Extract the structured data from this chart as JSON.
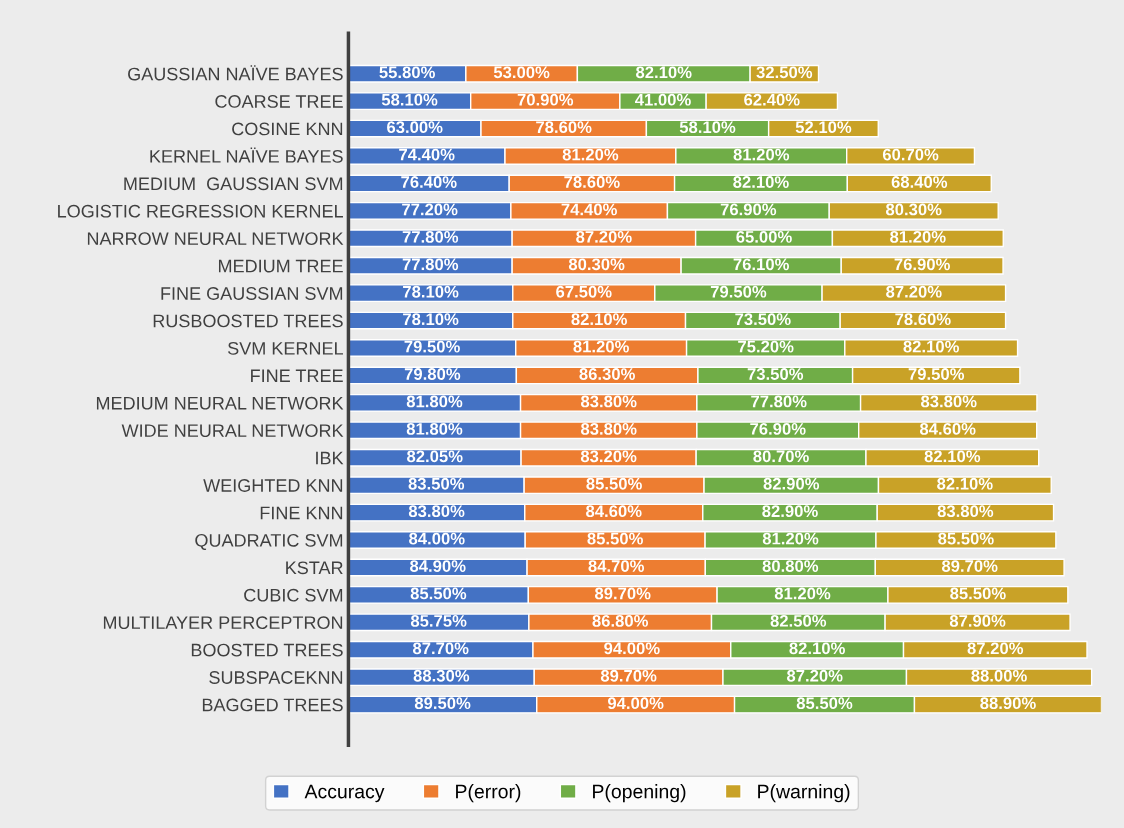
{
  "chart_data": {
    "type": "bar",
    "orientation": "horizontal",
    "stacked": true,
    "legend": "bottom",
    "grid": false,
    "categories": [
      "GAUSSIAN NAÏVE BAYES",
      "COARSE TREE",
      "COSINE KNN",
      "KERNEL NAÏVE BAYES",
      "MEDIUM  GAUSSIAN SVM",
      "LOGISTIC REGRESSION KERNEL",
      "NARROW NEURAL NETWORK",
      "MEDIUM TREE",
      "FINE GAUSSIAN SVM",
      "RUSBOOSTED TREES",
      "SVM KERNEL",
      "FINE TREE",
      "MEDIUM NEURAL NETWORK",
      "WIDE NEURAL NETWORK",
      "IBK",
      "WEIGHTED KNN",
      "FINE KNN",
      "QUADRATIC SVM",
      "KSTAR",
      "CUBIC SVM",
      "MULTILAYER PERCEPTRON",
      "BOOSTED TREES",
      "SUBSPACEKNN",
      "BAGGED TREES"
    ],
    "series": [
      {
        "name": "Accuracy",
        "color": "#4472c4",
        "values": [
          55.8,
          58.1,
          63.0,
          74.4,
          76.4,
          77.2,
          77.8,
          77.8,
          78.1,
          78.1,
          79.5,
          79.8,
          81.8,
          81.8,
          82.05,
          83.5,
          83.8,
          84.0,
          84.9,
          85.5,
          85.75,
          87.7,
          88.3,
          89.5
        ],
        "value_labels": [
          "55.80%",
          "58.10%",
          "63.00%",
          "74.40%",
          "76.40%",
          "77.20%",
          "77.80%",
          "77.80%",
          "78.10%",
          "78.10%",
          "79.50%",
          "79.80%",
          "81.80%",
          "81.80%",
          "82.05%",
          "83.50%",
          "83.80%",
          "84.00%",
          "84.90%",
          "85.50%",
          "85.75%",
          "87.70%",
          "88.30%",
          "89.50%"
        ]
      },
      {
        "name": "P(error)",
        "color": "#ed7d31",
        "values": [
          53.0,
          70.9,
          78.6,
          81.2,
          78.6,
          74.4,
          87.2,
          80.3,
          67.5,
          82.1,
          81.2,
          86.3,
          83.8,
          83.8,
          83.2,
          85.5,
          84.6,
          85.5,
          84.7,
          89.7,
          86.8,
          94.0,
          89.7,
          94.0
        ],
        "value_labels": [
          "53.00%",
          "70.90%",
          "78.60%",
          "81.20%",
          "78.60%",
          "74.40%",
          "87.20%",
          "80.30%",
          "67.50%",
          "82.10%",
          "81.20%",
          "86.30%",
          "83.80%",
          "83.80%",
          "83.20%",
          "85.50%",
          "84.60%",
          "85.50%",
          "84.70%",
          "89.70%",
          "86.80%",
          "94.00%",
          "89.70%",
          "94.00%"
        ]
      },
      {
        "name": "P(opening)",
        "color": "#70ad47",
        "values": [
          82.1,
          41.0,
          58.1,
          81.2,
          82.1,
          76.9,
          65.0,
          76.1,
          79.5,
          73.5,
          75.2,
          73.5,
          77.8,
          76.9,
          80.7,
          82.9,
          82.9,
          81.2,
          80.8,
          81.2,
          82.5,
          82.1,
          87.2,
          85.5
        ],
        "value_labels": [
          "82.10%",
          "41.00%",
          "58.10%",
          "81.20%",
          "82.10%",
          "76.90%",
          "65.00%",
          "76.10%",
          "79.50%",
          "73.50%",
          "75.20%",
          "73.50%",
          "77.80%",
          "76.90%",
          "80.70%",
          "82.90%",
          "82.90%",
          "81.20%",
          "80.80%",
          "81.20%",
          "82.50%",
          "82.10%",
          "87.20%",
          "85.50%"
        ]
      },
      {
        "name": "P(warning)",
        "color": "#c9a227",
        "values": [
          32.5,
          62.4,
          52.1,
          60.7,
          68.4,
          80.3,
          81.2,
          76.9,
          87.2,
          78.6,
          82.1,
          79.5,
          83.8,
          84.6,
          82.1,
          82.1,
          83.8,
          85.5,
          89.7,
          85.5,
          87.9,
          87.2,
          88.0,
          88.9
        ],
        "value_labels": [
          "32.50%",
          "62.40%",
          "52.10%",
          "60.70%",
          "68.40%",
          "80.30%",
          "81.20%",
          "76.90%",
          "87.20%",
          "78.60%",
          "82.10%",
          "79.50%",
          "83.80%",
          "84.60%",
          "82.10%",
          "82.10%",
          "83.80%",
          "85.50%",
          "89.70%",
          "85.50%",
          "87.90%",
          "87.20%",
          "88.00%",
          "88.90%"
        ]
      }
    ]
  }
}
